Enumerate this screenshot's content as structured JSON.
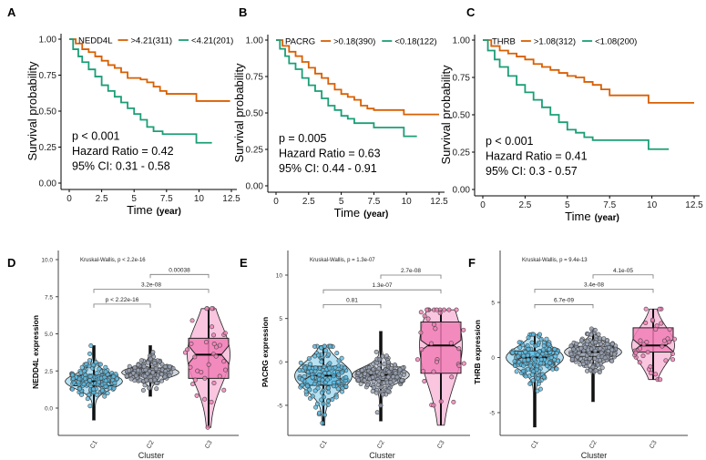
{
  "colors": {
    "high": "#D95F02",
    "low": "#1B9E77",
    "C1": "#5BBCE4",
    "C2": "#9AA4B5",
    "C3": "#F27FB8"
  },
  "chart_data": [
    {
      "panel": "A",
      "type": "line",
      "subtype": "kaplan-meier",
      "gene": "NEDD4L",
      "xlabel": "Time",
      "xunit": "(year)",
      "ylabel": "Survival probability",
      "xlim": [
        0,
        12.5
      ],
      "ylim": [
        0,
        1
      ],
      "xticks": [
        "0",
        "2.5",
        "5",
        "7.5",
        "10",
        "12.5"
      ],
      "yticks": [
        "0.00",
        "0.25",
        "0.50",
        "0.75",
        "1.00"
      ],
      "series": [
        {
          "name": ">4.21(311)",
          "points": [
            [
              0,
              1
            ],
            [
              0.5,
              0.97
            ],
            [
              1,
              0.93
            ],
            [
              1.5,
              0.91
            ],
            [
              2,
              0.88
            ],
            [
              2.5,
              0.85
            ],
            [
              3,
              0.82
            ],
            [
              3.5,
              0.8
            ],
            [
              4,
              0.77
            ],
            [
              4.5,
              0.73
            ],
            [
              5.5,
              0.72
            ],
            [
              6,
              0.7
            ],
            [
              6.5,
              0.67
            ],
            [
              7,
              0.64
            ],
            [
              7.5,
              0.62
            ],
            [
              9.8,
              0.62
            ],
            [
              9.8,
              0.57
            ],
            [
              12.4,
              0.57
            ]
          ]
        },
        {
          "name": "<4.21(201)",
          "points": [
            [
              0,
              1
            ],
            [
              0.3,
              0.93
            ],
            [
              0.7,
              0.88
            ],
            [
              1,
              0.84
            ],
            [
              1.5,
              0.79
            ],
            [
              2,
              0.74
            ],
            [
              2.5,
              0.68
            ],
            [
              3,
              0.64
            ],
            [
              3.5,
              0.6
            ],
            [
              4,
              0.56
            ],
            [
              4.5,
              0.52
            ],
            [
              5,
              0.48
            ],
            [
              5.5,
              0.44
            ],
            [
              6,
              0.39
            ],
            [
              6.5,
              0.36
            ],
            [
              7.2,
              0.34
            ],
            [
              9.8,
              0.34
            ],
            [
              9.8,
              0.28
            ],
            [
              11,
              0.28
            ]
          ]
        }
      ],
      "annotations": [
        "p < 0.001",
        "Hazard Ratio = 0.42",
        "95% CI: 0.31 - 0.58"
      ]
    },
    {
      "panel": "B",
      "type": "line",
      "subtype": "kaplan-meier",
      "gene": "PACRG",
      "xlabel": "Time",
      "xunit": "(year)",
      "ylabel": "Survival probability",
      "xlim": [
        0,
        12.5
      ],
      "ylim": [
        0,
        1
      ],
      "xticks": [
        "0",
        "2.5",
        "5",
        "7.5",
        "10",
        "12.5"
      ],
      "yticks": [
        "0.00",
        "0.25",
        "0.50",
        "0.75",
        "1.00"
      ],
      "series": [
        {
          "name": ">0.18(390)",
          "points": [
            [
              0,
              1
            ],
            [
              0.5,
              0.96
            ],
            [
              1,
              0.92
            ],
            [
              1.5,
              0.89
            ],
            [
              2,
              0.85
            ],
            [
              2.5,
              0.81
            ],
            [
              3,
              0.77
            ],
            [
              3.5,
              0.74
            ],
            [
              4,
              0.7
            ],
            [
              4.5,
              0.66
            ],
            [
              5,
              0.63
            ],
            [
              5.5,
              0.61
            ],
            [
              6,
              0.59
            ],
            [
              6.5,
              0.55
            ],
            [
              7,
              0.53
            ],
            [
              7.5,
              0.52
            ],
            [
              9.5,
              0.52
            ],
            [
              9.8,
              0.49
            ],
            [
              12.5,
              0.49
            ]
          ]
        },
        {
          "name": "<0.18(122)",
          "points": [
            [
              0,
              1
            ],
            [
              0.3,
              0.94
            ],
            [
              0.7,
              0.89
            ],
            [
              1,
              0.84
            ],
            [
              1.5,
              0.8
            ],
            [
              2,
              0.74
            ],
            [
              2.5,
              0.69
            ],
            [
              3,
              0.65
            ],
            [
              3.5,
              0.6
            ],
            [
              4,
              0.55
            ],
            [
              4.5,
              0.52
            ],
            [
              5,
              0.48
            ],
            [
              5.5,
              0.46
            ],
            [
              6,
              0.43
            ],
            [
              7,
              0.43
            ],
            [
              7.5,
              0.4
            ],
            [
              9.8,
              0.4
            ],
            [
              9.8,
              0.34
            ],
            [
              10.8,
              0.34
            ]
          ]
        }
      ],
      "annotations": [
        "p = 0.005",
        "Hazard Ratio = 0.63",
        "95% CI: 0.44 - 0.91"
      ]
    },
    {
      "panel": "C",
      "type": "line",
      "subtype": "kaplan-meier",
      "gene": "THRB",
      "xlabel": "Time",
      "xunit": "(year)",
      "ylabel": "Survival probability",
      "xlim": [
        0,
        12.5
      ],
      "ylim": [
        0,
        1
      ],
      "xticks": [
        "0",
        "2.5",
        "5",
        "7.5",
        "10",
        "12.5"
      ],
      "yticks": [
        "0.00",
        "0.25",
        "0.50",
        "0.75",
        "1.00"
      ],
      "series": [
        {
          "name": ">1.08(312)",
          "points": [
            [
              0,
              1
            ],
            [
              0.5,
              0.96
            ],
            [
              1,
              0.93
            ],
            [
              1.5,
              0.91
            ],
            [
              2,
              0.89
            ],
            [
              2.5,
              0.87
            ],
            [
              3,
              0.84
            ],
            [
              3.5,
              0.82
            ],
            [
              4,
              0.8
            ],
            [
              4.5,
              0.78
            ],
            [
              5,
              0.76
            ],
            [
              5.5,
              0.75
            ],
            [
              6,
              0.72
            ],
            [
              6.5,
              0.7
            ],
            [
              7,
              0.67
            ],
            [
              7.5,
              0.63
            ],
            [
              9.8,
              0.63
            ],
            [
              9.8,
              0.58
            ],
            [
              12.5,
              0.58
            ]
          ]
        },
        {
          "name": "<1.08(200)",
          "points": [
            [
              0,
              1
            ],
            [
              0.3,
              0.93
            ],
            [
              0.7,
              0.87
            ],
            [
              1,
              0.82
            ],
            [
              1.5,
              0.76
            ],
            [
              2,
              0.7
            ],
            [
              2.5,
              0.65
            ],
            [
              3,
              0.6
            ],
            [
              3.5,
              0.55
            ],
            [
              4,
              0.5
            ],
            [
              4.5,
              0.45
            ],
            [
              5,
              0.4
            ],
            [
              5.5,
              0.38
            ],
            [
              6,
              0.35
            ],
            [
              6.5,
              0.33
            ],
            [
              9.8,
              0.33
            ],
            [
              9.8,
              0.27
            ],
            [
              11,
              0.27
            ]
          ]
        }
      ],
      "annotations": [
        "p < 0.001",
        "Hazard Ratio = 0.41",
        "95% CI: 0.3 - 0.57"
      ]
    },
    {
      "panel": "D",
      "type": "violin-box",
      "ylabel": "NEDD4L expression",
      "xlabel": "Cluster",
      "title": "Kruskal-Wallis, p < 2.2e-16",
      "categories": [
        "C1",
        "C2",
        "C3"
      ],
      "yticks": [
        0,
        2.5,
        5,
        7.5,
        10
      ],
      "ytick_labels": [
        "0.0",
        "2.5",
        "5.0",
        "7.5",
        "10.0"
      ],
      "boxes": [
        {
          "min": -0.8,
          "q1": 1.5,
          "median": 1.8,
          "q3": 2.2,
          "max": 4.2,
          "n": 150
        },
        {
          "min": 0.8,
          "q1": 2.2,
          "median": 2.4,
          "q3": 2.7,
          "max": 4.2,
          "n": 150
        },
        {
          "min": -1.3,
          "q1": 2.0,
          "median": 3.6,
          "q3": 4.7,
          "max": 6.7,
          "n": 35
        }
      ],
      "comparisons": [
        {
          "from": "C1",
          "to": "C2",
          "label": "p < 2.22e-16",
          "y": 7.0
        },
        {
          "from": "C1",
          "to": "C3",
          "label": "3.2e-08",
          "y": 8.0
        },
        {
          "from": "C2",
          "to": "C3",
          "label": "0.00038",
          "y": 9.0
        }
      ]
    },
    {
      "panel": "E",
      "type": "violin-box",
      "ylabel": "PACRG expression",
      "xlabel": "Cluster",
      "title": "Kruskal-Wallis, p = 1.3e-07",
      "categories": [
        "C1",
        "C2",
        "C3"
      ],
      "yticks": [
        -5,
        0,
        5,
        10
      ],
      "ytick_labels": [
        "-5",
        "0",
        "5",
        "10"
      ],
      "boxes": [
        {
          "min": -7.3,
          "q1": -2.7,
          "median": -1.6,
          "q3": -0.5,
          "max": 1.8,
          "n": 150
        },
        {
          "min": -6.8,
          "q1": -2.1,
          "median": -1.5,
          "q3": -0.9,
          "max": 3.5,
          "n": 150
        },
        {
          "min": -7.3,
          "q1": -1.3,
          "median": 1.9,
          "q3": 4.6,
          "max": 6.0,
          "n": 35
        }
      ],
      "comparisons": [
        {
          "from": "C1",
          "to": "C2",
          "label": "0.81",
          "y": 6.6
        },
        {
          "from": "C1",
          "to": "C3",
          "label": "1.3e-07",
          "y": 8.3
        },
        {
          "from": "C2",
          "to": "C3",
          "label": "2.7e-08",
          "y": 10.0
        }
      ]
    },
    {
      "panel": "F",
      "type": "violin-box",
      "ylabel": "THRB expression",
      "xlabel": "Cluster",
      "title": "Kruskal-Wallis, p = 9.4e-13",
      "categories": [
        "C1",
        "C2",
        "C3"
      ],
      "yticks": [
        -5,
        0,
        5
      ],
      "ytick_labels": [
        "-5",
        "0",
        "5"
      ],
      "boxes": [
        {
          "min": -6.3,
          "q1": -0.7,
          "median": 0.0,
          "q3": 0.6,
          "max": 2.1,
          "n": 150
        },
        {
          "min": -4.0,
          "q1": 0.1,
          "median": 0.5,
          "q3": 1.0,
          "max": 2.6,
          "n": 150
        },
        {
          "min": -2.0,
          "q1": 0.5,
          "median": 1.1,
          "q3": 2.7,
          "max": 4.4,
          "n": 35
        }
      ],
      "comparisons": [
        {
          "from": "C1",
          "to": "C2",
          "label": "6.7e-09",
          "y": 4.8
        },
        {
          "from": "C1",
          "to": "C3",
          "label": "3.4e-08",
          "y": 6.2
        },
        {
          "from": "C2",
          "to": "C3",
          "label": "4.1e-05",
          "y": 7.5
        }
      ]
    }
  ]
}
